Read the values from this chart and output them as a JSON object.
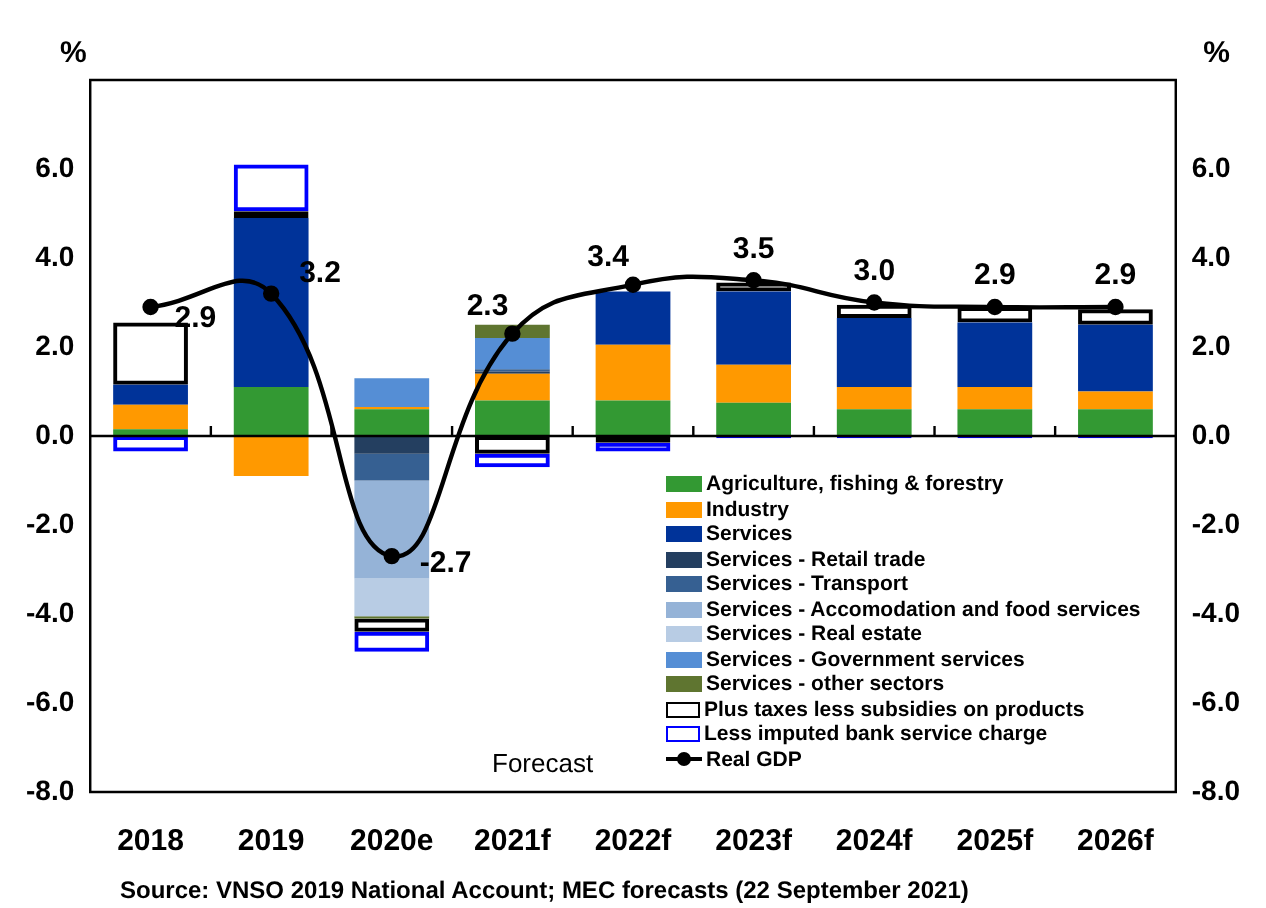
{
  "chart_data": {
    "type": "bar",
    "stacked": true,
    "categories": [
      "2018",
      "2019",
      "2020e",
      "2021f",
      "2022f",
      "2023f",
      "2024f",
      "2025f",
      "2026f"
    ],
    "series": [
      {
        "name": "Agriculture, fishing & forestry",
        "color": "#339933",
        "values": [
          0.15,
          1.1,
          0.6,
          0.8,
          0.8,
          0.75,
          0.6,
          0.6,
          0.6
        ]
      },
      {
        "name": "Industry",
        "color": "#ff9900",
        "values": [
          0.55,
          -0.9,
          0.05,
          0.6,
          1.25,
          0.85,
          0.5,
          0.5,
          0.4
        ]
      },
      {
        "name": "Services",
        "color": "#003399",
        "values": [
          0.45,
          3.8,
          null,
          null,
          1.2,
          1.65,
          1.55,
          1.45,
          1.5
        ]
      },
      {
        "name": "Services - Retail trade",
        "color": "#243f60",
        "values": [
          null,
          null,
          -0.4,
          0.05,
          null,
          null,
          null,
          null,
          null
        ]
      },
      {
        "name": "Services - Transport",
        "color": "#366092",
        "values": [
          null,
          null,
          -0.6,
          0.05,
          null,
          null,
          null,
          null,
          null
        ]
      },
      {
        "name": "Services - Accomodation and food services",
        "color": "#95b3d7",
        "values": [
          null,
          null,
          -2.2,
          null,
          null,
          null,
          null,
          null,
          null
        ]
      },
      {
        "name": "Services - Real estate",
        "color": "#b8cce4",
        "values": [
          null,
          null,
          -0.85,
          null,
          null,
          null,
          null,
          null,
          null
        ]
      },
      {
        "name": "Services - Government services",
        "color": "#558ed5",
        "values": [
          null,
          null,
          0.65,
          0.7,
          null,
          null,
          null,
          null,
          null
        ]
      },
      {
        "name": "Services - other sectors",
        "color": "#5f7530",
        "values": [
          null,
          null,
          -0.05,
          0.3,
          null,
          null,
          null,
          null,
          null
        ]
      },
      {
        "name": "Plus taxes less subsidies on products",
        "color": "#000000",
        "line_style": "solid",
        "values": [
          1.4,
          0.15,
          -0.3,
          -0.4,
          -0.15,
          0.2,
          0.3,
          0.35,
          0.35
        ]
      },
      {
        "name": "Less imputed bank service charge",
        "color": "#0000ff",
        "line_style": "solid",
        "values": [
          -0.35,
          1.05,
          -0.45,
          -0.3,
          -0.2,
          -0.05,
          -0.05,
          -0.05,
          -0.05
        ]
      },
      {
        "name": "Real GDP",
        "type": "line",
        "color": "#000000",
        "marker": "circle",
        "values": [
          2.9,
          3.2,
          -2.7,
          2.3,
          3.4,
          3.5,
          3.0,
          2.9,
          2.9
        ],
        "value_labels": [
          "2.9",
          "3.2",
          "-2.7",
          "2.3",
          "3.4",
          "3.5",
          "3.0",
          "2.9",
          "2.9"
        ]
      }
    ],
    "ylabel": "%",
    "y2label": "%",
    "ylim": [
      -8,
      8
    ],
    "yticks": [
      {
        "value": -8,
        "label": "-8.0"
      },
      {
        "value": -6,
        "label": "-6.0"
      },
      {
        "value": -4,
        "label": "-4.0"
      },
      {
        "value": -2,
        "label": "-2.0"
      },
      {
        "value": 0,
        "label": "0.0"
      },
      {
        "value": 2,
        "label": "2.0"
      },
      {
        "value": 4,
        "label": "4.0"
      },
      {
        "value": 6,
        "label": "6.0"
      },
      {
        "value": 8,
        "label": null
      }
    ],
    "y2lim": [
      -8,
      8
    ],
    "y2ticks": [
      {
        "value": -8,
        "label": "-8.0"
      },
      {
        "value": -6,
        "label": "-6.0"
      },
      {
        "value": -4,
        "label": "-4.0"
      },
      {
        "value": -2,
        "label": "-2.0"
      },
      {
        "value": 0,
        "label": "0.0"
      },
      {
        "value": 2,
        "label": "2.0"
      },
      {
        "value": 4,
        "label": "4.0"
      },
      {
        "value": 6,
        "label": "6.0"
      },
      {
        "value": 8,
        "label": null
      }
    ],
    "ref_lines": [
      {
        "axis": "y",
        "value": 0,
        "color": "#000000"
      }
    ],
    "grid": false,
    "legend": "bottom right",
    "annotations": [
      "Forecast",
      "Source: VNSO 2019 National Account; MEC forecasts (22 September 2021)"
    ]
  }
}
